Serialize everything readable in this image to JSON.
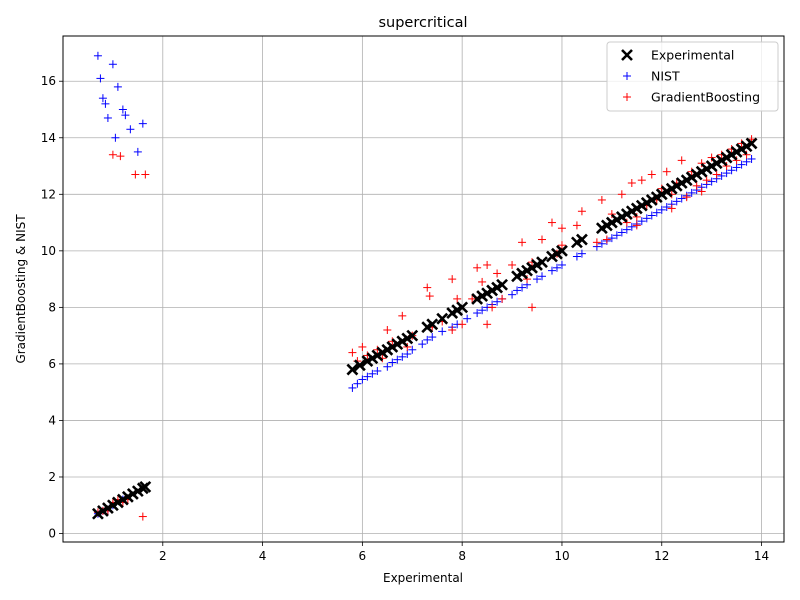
{
  "chart_data": {
    "type": "scatter",
    "title": "supercritical",
    "xlabel": "Experimental",
    "ylabel": "GradientBoosting & NIST",
    "xlim": [
      0.0,
      14.45
    ],
    "ylim": [
      -0.3,
      17.6
    ],
    "xticks": [
      "2",
      "4",
      "6",
      "8",
      "10",
      "12",
      "14"
    ],
    "yticks": [
      "0",
      "2",
      "4",
      "6",
      "8",
      "10",
      "12",
      "14",
      "16"
    ],
    "grid": true,
    "legend_position": "top-right",
    "series": [
      {
        "name": "Experimental",
        "marker": "x",
        "color": "#000000",
        "x": [
          0.7,
          0.8,
          0.9,
          1.0,
          1.1,
          1.2,
          1.3,
          1.4,
          1.5,
          1.6,
          1.65,
          5.8,
          5.95,
          6.1,
          6.2,
          6.3,
          6.4,
          6.5,
          6.6,
          6.7,
          6.8,
          6.9,
          7.0,
          7.3,
          7.4,
          7.6,
          7.8,
          7.9,
          8.0,
          8.3,
          8.4,
          8.5,
          8.6,
          8.7,
          8.8,
          9.1,
          9.2,
          9.3,
          9.4,
          9.5,
          9.6,
          9.8,
          9.9,
          10.0,
          10.3,
          10.4,
          10.8,
          10.9,
          11.0,
          11.1,
          11.2,
          11.3,
          11.4,
          11.5,
          11.6,
          11.7,
          11.8,
          11.9,
          12.0,
          12.1,
          12.2,
          12.3,
          12.4,
          12.5,
          12.6,
          12.7,
          12.8,
          12.9,
          13.0,
          13.1,
          13.2,
          13.3,
          13.4,
          13.5,
          13.6,
          13.7,
          13.8
        ],
        "y": [
          0.7,
          0.8,
          0.9,
          1.0,
          1.1,
          1.2,
          1.3,
          1.4,
          1.5,
          1.6,
          1.65,
          5.8,
          5.95,
          6.1,
          6.2,
          6.3,
          6.4,
          6.5,
          6.6,
          6.7,
          6.8,
          6.9,
          7.0,
          7.3,
          7.4,
          7.6,
          7.8,
          7.9,
          8.0,
          8.3,
          8.4,
          8.5,
          8.6,
          8.7,
          8.8,
          9.1,
          9.2,
          9.3,
          9.4,
          9.5,
          9.6,
          9.8,
          9.9,
          10.0,
          10.3,
          10.4,
          10.8,
          10.9,
          11.0,
          11.1,
          11.2,
          11.3,
          11.4,
          11.5,
          11.6,
          11.7,
          11.8,
          11.9,
          12.0,
          12.1,
          12.2,
          12.3,
          12.4,
          12.5,
          12.6,
          12.7,
          12.8,
          12.9,
          13.0,
          13.1,
          13.2,
          13.3,
          13.4,
          13.5,
          13.6,
          13.7,
          13.8
        ]
      },
      {
        "name": "NIST",
        "marker": "+",
        "color": "#0000ff",
        "x": [
          0.7,
          0.75,
          0.8,
          0.85,
          0.9,
          1.0,
          1.05,
          1.1,
          1.2,
          1.25,
          1.35,
          1.5,
          1.6,
          0.7,
          0.8,
          0.9,
          1.0,
          1.2,
          5.8,
          5.9,
          6.0,
          6.1,
          6.2,
          6.3,
          6.5,
          6.6,
          6.7,
          6.8,
          6.9,
          7.0,
          7.2,
          7.3,
          7.4,
          7.6,
          7.8,
          7.9,
          8.1,
          8.3,
          8.4,
          8.5,
          8.6,
          8.7,
          8.8,
          9.0,
          9.1,
          9.2,
          9.3,
          9.5,
          9.6,
          9.8,
          9.9,
          10.0,
          10.3,
          10.4,
          10.7,
          10.8,
          10.9,
          11.0,
          11.1,
          11.2,
          11.3,
          11.4,
          11.5,
          11.6,
          11.7,
          11.8,
          11.9,
          12.0,
          12.1,
          12.2,
          12.3,
          12.4,
          12.5,
          12.6,
          12.7,
          12.8,
          12.9,
          13.0,
          13.1,
          13.2,
          13.3,
          13.4,
          13.5,
          13.6,
          13.7,
          13.8
        ],
        "y": [
          16.9,
          16.1,
          15.4,
          15.2,
          14.7,
          16.6,
          14.0,
          15.8,
          15.0,
          14.8,
          14.3,
          13.5,
          14.5,
          0.7,
          0.8,
          0.8,
          1.0,
          1.2,
          5.15,
          5.3,
          5.45,
          5.55,
          5.65,
          5.75,
          5.9,
          6.05,
          6.15,
          6.25,
          6.35,
          6.5,
          6.7,
          6.85,
          6.95,
          7.15,
          7.3,
          7.4,
          7.6,
          7.8,
          7.9,
          8.0,
          8.1,
          8.2,
          8.3,
          8.45,
          8.6,
          8.7,
          8.8,
          9.0,
          9.1,
          9.3,
          9.4,
          9.5,
          9.8,
          9.9,
          10.15,
          10.25,
          10.35,
          10.45,
          10.55,
          10.65,
          10.75,
          10.85,
          10.95,
          11.05,
          11.15,
          11.25,
          11.35,
          11.45,
          11.55,
          11.65,
          11.75,
          11.85,
          11.95,
          12.05,
          12.15,
          12.25,
          12.35,
          12.45,
          12.55,
          12.65,
          12.75,
          12.85,
          12.95,
          13.05,
          13.15,
          13.25
        ]
      },
      {
        "name": "GradientBoosting",
        "marker": "+",
        "color": "#ff0000",
        "x": [
          0.7,
          0.8,
          0.9,
          1.0,
          1.1,
          1.2,
          1.3,
          1.0,
          1.15,
          1.45,
          1.65,
          1.6,
          5.8,
          5.9,
          6.0,
          6.1,
          6.3,
          6.5,
          6.6,
          6.8,
          6.9,
          7.0,
          7.3,
          7.35,
          7.4,
          7.6,
          7.8,
          7.9,
          8.0,
          8.2,
          8.3,
          8.4,
          8.5,
          8.6,
          8.7,
          8.8,
          9.0,
          9.2,
          9.3,
          9.4,
          9.6,
          9.8,
          9.9,
          10.0,
          10.3,
          10.4,
          10.8,
          10.9,
          11.0,
          11.2,
          11.3,
          11.4,
          11.5,
          11.6,
          11.7,
          11.8,
          11.9,
          12.0,
          12.1,
          12.2,
          12.3,
          12.4,
          12.5,
          12.6,
          12.7,
          12.8,
          12.9,
          13.0,
          13.1,
          13.2,
          13.3,
          13.4,
          13.5,
          13.6,
          13.7,
          13.8,
          8.5,
          9.4,
          10.0,
          11.5,
          12.8,
          10.7,
          12.2,
          6.4,
          7.8
        ],
        "y": [
          0.75,
          0.8,
          0.8,
          1.1,
          1.2,
          1.1,
          1.2,
          13.4,
          13.35,
          12.7,
          12.7,
          0.6,
          6.4,
          6.1,
          6.6,
          6.3,
          6.5,
          7.2,
          6.8,
          7.7,
          6.6,
          7.0,
          8.7,
          8.4,
          7.3,
          7.5,
          9.0,
          8.3,
          7.4,
          8.3,
          9.4,
          8.9,
          9.5,
          8.0,
          9.2,
          8.3,
          9.5,
          10.3,
          9.0,
          9.6,
          10.4,
          11.0,
          9.9,
          10.8,
          10.9,
          11.4,
          11.8,
          10.4,
          11.3,
          12.0,
          11.0,
          12.4,
          11.2,
          12.5,
          11.6,
          12.7,
          11.8,
          12.2,
          12.8,
          12.0,
          12.4,
          13.2,
          11.9,
          12.8,
          12.3,
          13.1,
          12.5,
          13.3,
          12.7,
          13.4,
          13.0,
          13.6,
          13.2,
          13.8,
          13.4,
          13.95,
          7.4,
          8.0,
          10.2,
          10.9,
          12.1,
          10.3,
          11.5,
          6.2,
          7.2
        ]
      }
    ]
  }
}
